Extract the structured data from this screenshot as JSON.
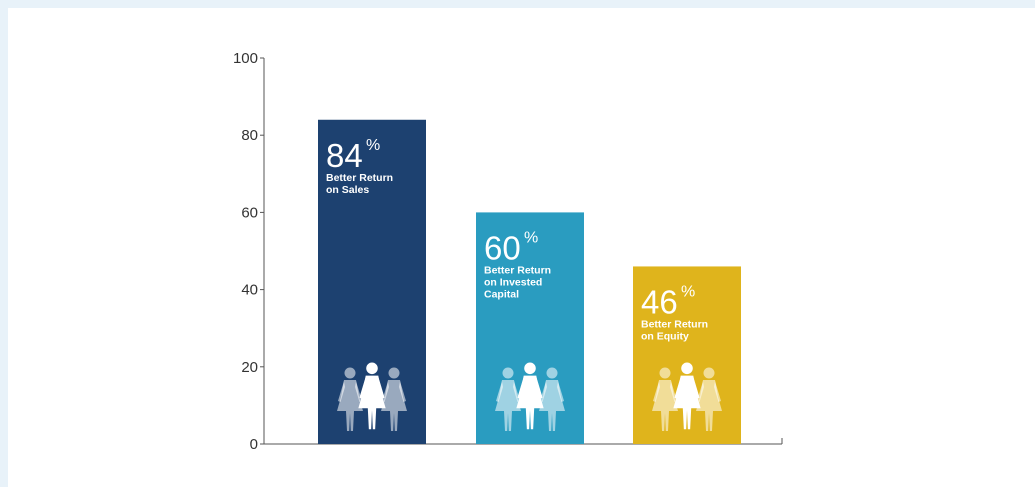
{
  "chart_data": {
    "type": "bar",
    "title": "",
    "xlabel": "",
    "ylabel": "",
    "ylim": [
      0,
      100
    ],
    "yticks": [
      0,
      20,
      40,
      60,
      80,
      100
    ],
    "grid": false,
    "legend": "none",
    "categories": [
      "Better Return on Sales",
      "Better Return on Invested Capital",
      "Better Return on Equity"
    ],
    "bars": [
      {
        "value": 84,
        "value_label": "84",
        "unit": "%",
        "desc": [
          "Better Return",
          "on Sales"
        ],
        "color": "#1d4170"
      },
      {
        "value": 60,
        "value_label": "60",
        "unit": "%",
        "desc": [
          "Better Return",
          "on Invested",
          "Capital"
        ],
        "color": "#2a9cc0"
      },
      {
        "value": 46,
        "value_label": "46",
        "unit": "%",
        "desc": [
          "Better Return",
          "on Equity"
        ],
        "color": "#dfb41c"
      }
    ],
    "icons": "three-women-icon",
    "axis_color": "#555555"
  }
}
